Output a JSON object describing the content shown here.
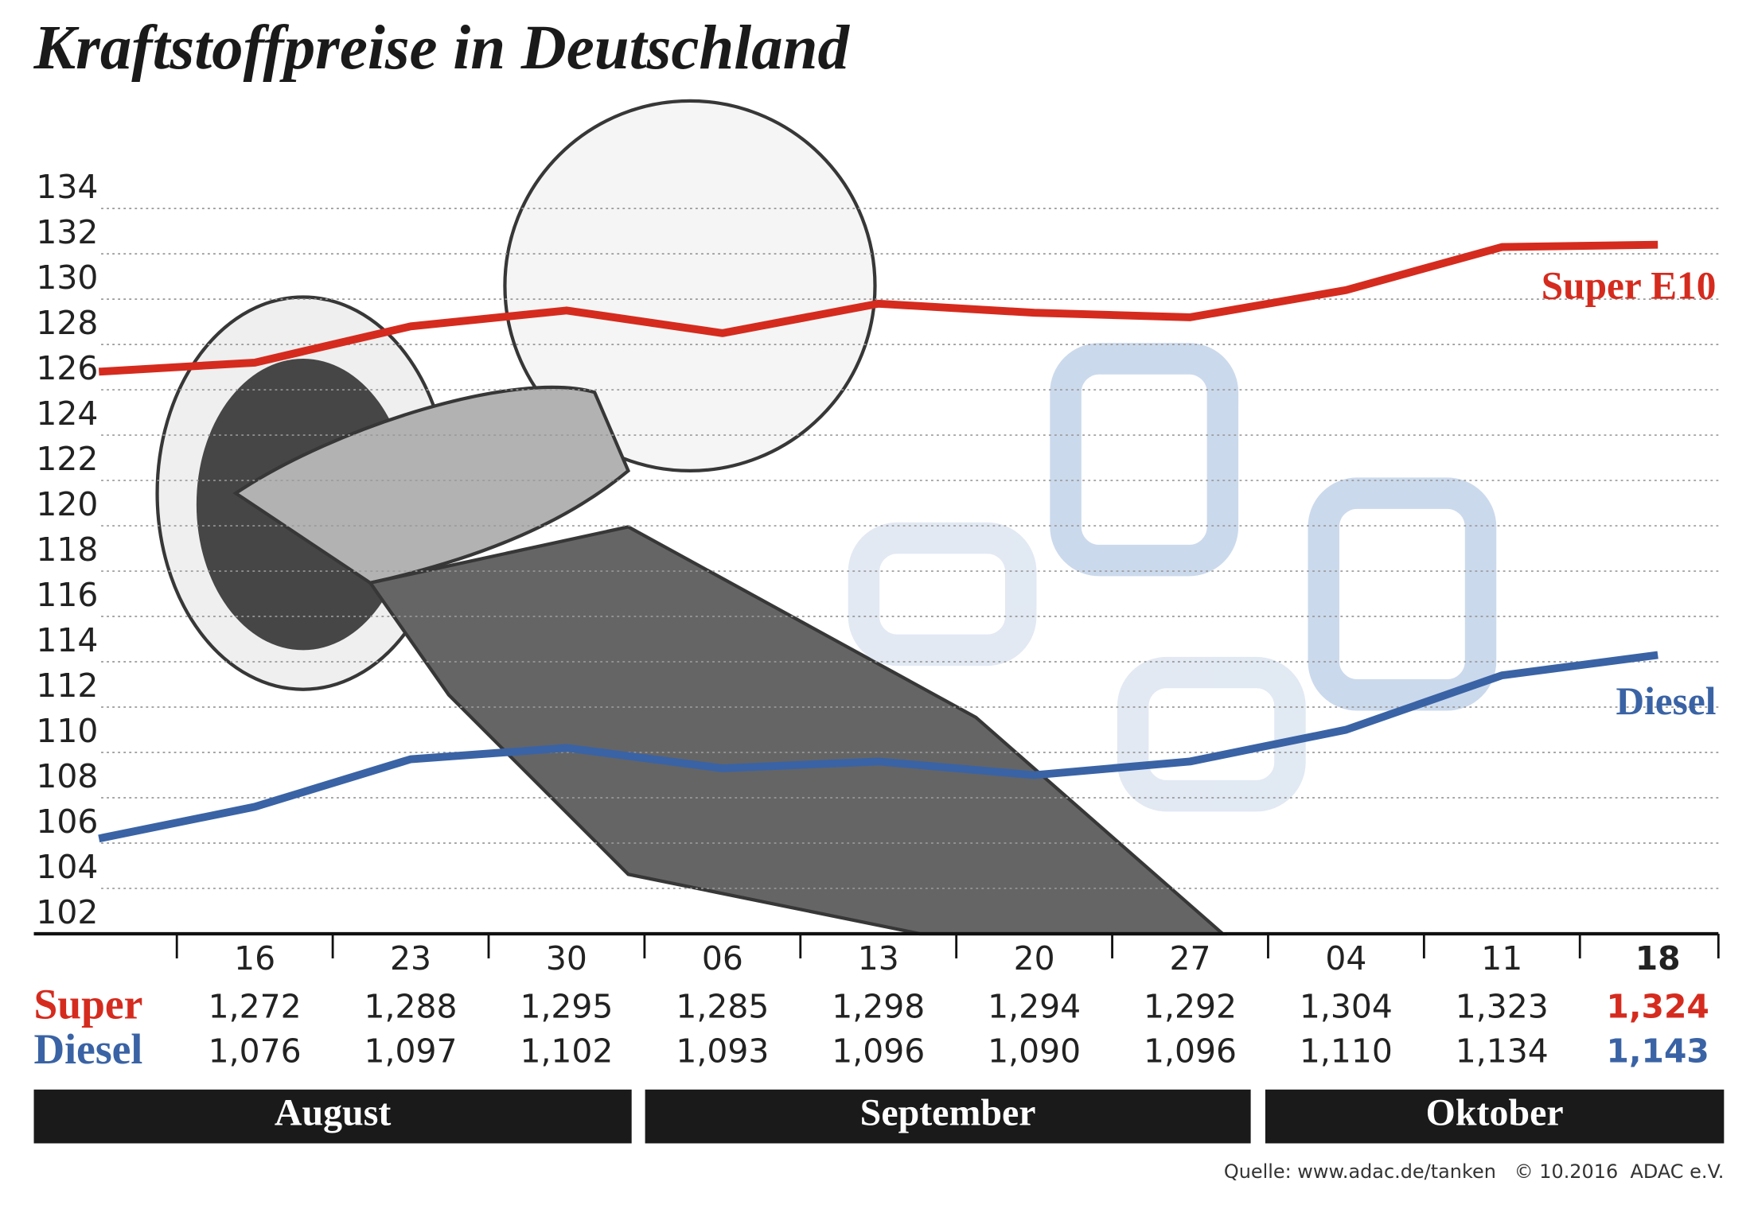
{
  "chart_data": {
    "type": "line",
    "title": "Kraftstoffpreise in Deutschland",
    "categories": [
      null,
      "16",
      "23",
      "30",
      "06",
      "13",
      "20",
      "27",
      "04",
      "11",
      "18"
    ],
    "months": [
      "August",
      "September",
      "Oktober"
    ],
    "row_labels": [
      "Super",
      "Diesel"
    ],
    "series": [
      {
        "name": "Super E10",
        "color": "#d52b1e",
        "values": [
          126.8,
          127.2,
          128.8,
          129.5,
          128.5,
          129.8,
          129.4,
          129.2,
          130.4,
          132.3,
          132.4
        ],
        "value_labels": [
          null,
          "1,272",
          "1,288",
          "1,295",
          "1,285",
          "1,298",
          "1,294",
          "1,292",
          "1,304",
          "1,323",
          "1,324"
        ]
      },
      {
        "name": "Diesel",
        "color": "#3a63a5",
        "values": [
          106.2,
          107.6,
          109.7,
          110.2,
          109.3,
          109.6,
          109.0,
          109.6,
          111.0,
          113.4,
          114.3
        ],
        "value_labels": [
          null,
          "1,076",
          "1,097",
          "1,102",
          "1,093",
          "1,096",
          "1,090",
          "1,096",
          "1,110",
          "1,134",
          "1,143"
        ]
      }
    ],
    "ylim": [
      102,
      134
    ],
    "yticks": [
      102,
      104,
      106,
      108,
      110,
      112,
      114,
      116,
      118,
      120,
      122,
      124,
      126,
      128,
      130,
      132,
      134
    ],
    "grid": true,
    "source": "Quelle: www.adac.de/tanken   © 10.2016  ADAC e.V."
  }
}
